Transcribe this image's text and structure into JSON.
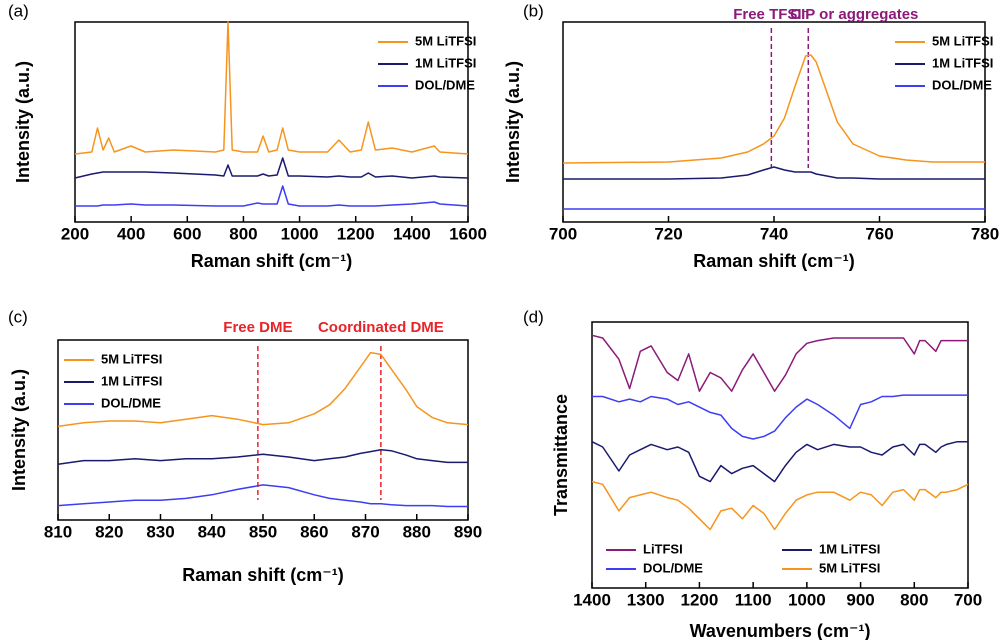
{
  "chart_data": [
    {
      "type": "line",
      "label": "(a)",
      "xlabel": "Raman shift (cm⁻¹)",
      "ylabel": "Intensity (a.u.)",
      "xlim": [
        200,
        1600
      ],
      "xticks": [
        200,
        400,
        600,
        800,
        1000,
        1200,
        1400,
        1600
      ],
      "ylim": [
        0,
        10
      ],
      "legend": "upper right",
      "x": [
        200,
        260,
        280,
        300,
        320,
        340,
        400,
        450,
        550,
        700,
        730,
        745,
        760,
        800,
        850,
        870,
        890,
        920,
        940,
        960,
        1000,
        1100,
        1140,
        1180,
        1220,
        1245,
        1270,
        1330,
        1400,
        1480,
        1500,
        1600
      ],
      "series": [
        {
          "name": "5M LiTFSI",
          "color": "#f7941d",
          "values": [
            3.4,
            3.5,
            4.7,
            3.6,
            4.2,
            3.5,
            3.8,
            3.5,
            3.6,
            3.5,
            3.6,
            10,
            3.6,
            3.5,
            3.5,
            4.3,
            3.5,
            3.6,
            4.7,
            3.6,
            3.5,
            3.5,
            4.1,
            3.5,
            3.6,
            5.0,
            3.6,
            3.7,
            3.5,
            3.8,
            3.5,
            3.4
          ]
        },
        {
          "name": "1M LiTFSI",
          "color": "#1a1a6e",
          "values": [
            2.2,
            2.4,
            2.45,
            2.5,
            2.5,
            2.5,
            2.5,
            2.5,
            2.45,
            2.35,
            2.3,
            2.85,
            2.3,
            2.3,
            2.3,
            2.4,
            2.3,
            2.35,
            3.2,
            2.3,
            2.3,
            2.25,
            2.3,
            2.25,
            2.25,
            2.45,
            2.25,
            2.3,
            2.2,
            2.3,
            2.25,
            2.2
          ]
        },
        {
          "name": "DOL/DME",
          "color": "#3d3df5",
          "values": [
            0.8,
            0.8,
            0.8,
            0.85,
            0.85,
            0.85,
            0.9,
            0.85,
            0.85,
            0.8,
            0.8,
            0.8,
            0.8,
            0.8,
            0.95,
            0.9,
            0.9,
            0.9,
            1.8,
            0.9,
            0.8,
            0.8,
            0.85,
            0.8,
            0.8,
            0.8,
            0.8,
            0.85,
            0.9,
            1.0,
            0.9,
            0.8
          ]
        }
      ]
    },
    {
      "type": "line",
      "label": "(b)",
      "xlabel": "Raman shift (cm⁻¹)",
      "ylabel": "Intensity (a.u.)",
      "xlim": [
        700,
        780
      ],
      "xticks": [
        700,
        720,
        740,
        760,
        780
      ],
      "ylim": [
        0,
        10
      ],
      "legend": "upper right",
      "annotations": [
        {
          "text": "Free TFSI⁻",
          "x": 739.5,
          "color": "#8b1a7a"
        },
        {
          "text": "CIP or aggregates",
          "x": 746.5,
          "color": "#8b1a7a"
        }
      ],
      "x": [
        700,
        720,
        730,
        735,
        738,
        740,
        742,
        744,
        746,
        747,
        748,
        750,
        752,
        755,
        760,
        765,
        770,
        780
      ],
      "series": [
        {
          "name": "5M LiTFSI",
          "color": "#f7941d",
          "values": [
            2.95,
            3.0,
            3.2,
            3.5,
            3.9,
            4.3,
            5.2,
            6.8,
            8.3,
            8.35,
            8.0,
            6.5,
            5.0,
            3.9,
            3.3,
            3.1,
            3.0,
            3.0
          ]
        },
        {
          "name": "1M LiTFSI",
          "color": "#1a1a6e",
          "values": [
            2.15,
            2.15,
            2.2,
            2.35,
            2.6,
            2.75,
            2.6,
            2.5,
            2.5,
            2.5,
            2.4,
            2.3,
            2.2,
            2.2,
            2.15,
            2.15,
            2.15,
            2.15
          ]
        },
        {
          "name": "DOL/DME",
          "color": "#3d3df5",
          "values": [
            0.65,
            0.65,
            0.65,
            0.65,
            0.65,
            0.65,
            0.65,
            0.65,
            0.65,
            0.65,
            0.65,
            0.65,
            0.65,
            0.65,
            0.65,
            0.65,
            0.65,
            0.65
          ]
        }
      ]
    },
    {
      "type": "line",
      "label": "(c)",
      "xlabel": "Raman shift (cm⁻¹)",
      "ylabel": "Intensity (a.u.)",
      "xlim": [
        810,
        890
      ],
      "xticks": [
        810,
        820,
        830,
        840,
        850,
        860,
        870,
        880,
        890
      ],
      "ylim": [
        0,
        10
      ],
      "legend": "upper left",
      "annotations": [
        {
          "text": "Free DME",
          "x": 849,
          "color": "#e8242a"
        },
        {
          "text": "Coordinated DME",
          "x": 873,
          "color": "#e8242a"
        }
      ],
      "x": [
        810,
        815,
        820,
        825,
        830,
        835,
        840,
        845,
        850,
        855,
        860,
        863,
        866,
        869,
        871,
        873,
        875,
        878,
        880,
        883,
        886,
        890
      ],
      "series": [
        {
          "name": "5M LiTFSI",
          "color": "#f7941d",
          "values": [
            5.2,
            5.4,
            5.5,
            5.5,
            5.4,
            5.6,
            5.8,
            5.6,
            5.3,
            5.4,
            5.9,
            6.4,
            7.3,
            8.5,
            9.3,
            9.2,
            8.4,
            7.2,
            6.3,
            5.7,
            5.4,
            5.3
          ]
        },
        {
          "name": "1M LiTFSI",
          "color": "#1a1a6e",
          "values": [
            3.1,
            3.3,
            3.3,
            3.4,
            3.3,
            3.4,
            3.4,
            3.5,
            3.65,
            3.5,
            3.3,
            3.4,
            3.5,
            3.7,
            3.8,
            3.9,
            3.85,
            3.6,
            3.4,
            3.3,
            3.2,
            3.2
          ]
        },
        {
          "name": "DOL/DME",
          "color": "#3d3df5",
          "values": [
            0.8,
            0.9,
            1.0,
            1.1,
            1.1,
            1.2,
            1.4,
            1.7,
            1.95,
            1.8,
            1.4,
            1.2,
            1.1,
            1.0,
            0.9,
            0.9,
            0.85,
            0.8,
            0.8,
            0.8,
            0.75,
            0.75
          ]
        }
      ]
    },
    {
      "type": "line",
      "label": "(d)",
      "xlabel": "Wavenumbers (cm⁻¹)",
      "ylabel": "Transmittance",
      "xlim": [
        1400,
        700
      ],
      "xticks": [
        1400,
        1300,
        1200,
        1100,
        1000,
        900,
        800,
        700
      ],
      "ylim": [
        0,
        10
      ],
      "legend": "lower center",
      "x": [
        1400,
        1380,
        1350,
        1330,
        1310,
        1290,
        1260,
        1240,
        1220,
        1200,
        1180,
        1160,
        1140,
        1120,
        1100,
        1080,
        1060,
        1040,
        1020,
        1000,
        980,
        950,
        920,
        900,
        880,
        860,
        840,
        820,
        800,
        790,
        780,
        760,
        750,
        740,
        720,
        700
      ],
      "series": [
        {
          "name": "LiTFSI",
          "color": "#8b1a7a",
          "values": [
            9.5,
            9.4,
            8.6,
            7.5,
            8.9,
            9.1,
            8.1,
            7.8,
            8.8,
            7.4,
            8.1,
            7.9,
            7.4,
            8.2,
            8.8,
            8.1,
            7.4,
            8.0,
            8.8,
            9.2,
            9.3,
            9.4,
            9.4,
            9.4,
            9.4,
            9.4,
            9.4,
            9.4,
            8.8,
            9.3,
            9.3,
            8.9,
            9.3,
            9.3,
            9.3,
            9.3
          ]
        },
        {
          "name": "DOL/DME",
          "color": "#3d3df5",
          "values": [
            7.2,
            7.2,
            7.0,
            7.1,
            7.0,
            7.2,
            7.1,
            6.9,
            7.0,
            6.8,
            6.6,
            6.5,
            6.0,
            5.7,
            5.6,
            5.7,
            5.9,
            6.4,
            6.8,
            7.1,
            6.9,
            6.5,
            6.0,
            6.9,
            7.0,
            7.2,
            7.2,
            7.25,
            7.25,
            7.25,
            7.25,
            7.25,
            7.25,
            7.25,
            7.25,
            7.25
          ]
        },
        {
          "name": "1M LiTFSI",
          "color": "#1a1a6e",
          "values": [
            5.5,
            5.3,
            4.4,
            5.0,
            5.2,
            5.4,
            5.2,
            5.3,
            5.1,
            4.2,
            4.0,
            4.6,
            4.3,
            4.5,
            4.6,
            4.3,
            4.0,
            4.6,
            5.1,
            5.4,
            5.2,
            5.4,
            5.3,
            5.3,
            5.1,
            5.0,
            5.3,
            5.4,
            5.0,
            5.4,
            5.4,
            5.1,
            5.3,
            5.4,
            5.5,
            5.5
          ]
        },
        {
          "name": "5M LiTFSI",
          "color": "#f7941d",
          "values": [
            4.0,
            3.9,
            2.9,
            3.4,
            3.5,
            3.6,
            3.4,
            3.3,
            3.0,
            2.6,
            2.2,
            2.9,
            3.0,
            2.6,
            3.1,
            2.8,
            2.2,
            2.8,
            3.3,
            3.5,
            3.6,
            3.6,
            3.3,
            3.6,
            3.5,
            3.1,
            3.6,
            3.7,
            3.3,
            3.7,
            3.7,
            3.4,
            3.6,
            3.6,
            3.7,
            3.9
          ]
        }
      ]
    }
  ]
}
